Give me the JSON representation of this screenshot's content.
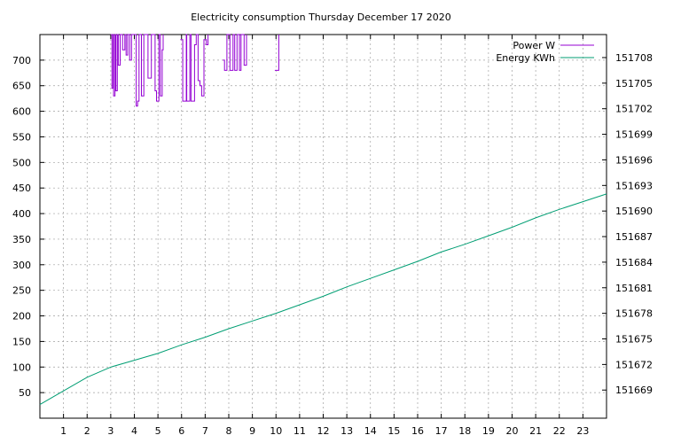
{
  "chart_data": {
    "type": "line",
    "title": "Electricity consumption Thursday December 17 2020",
    "xlabel": "",
    "ylabel": "",
    "grid": true,
    "legend_position": "top-right",
    "x_ticks": [
      1,
      2,
      3,
      4,
      5,
      6,
      7,
      8,
      9,
      10,
      11,
      12,
      13,
      14,
      15,
      16,
      17,
      18,
      19,
      20,
      21,
      22,
      23
    ],
    "xlim": [
      0,
      24
    ],
    "y_left": {
      "ticks": [
        50,
        100,
        150,
        200,
        250,
        300,
        350,
        400,
        450,
        500,
        550,
        600,
        650,
        700
      ],
      "lim": [
        0,
        750
      ]
    },
    "y_right": {
      "ticks": [
        151669,
        151672,
        151675,
        151678,
        151681,
        151684,
        151687,
        151690,
        151693,
        151696,
        151699,
        151702,
        151705,
        151708
      ],
      "lim": [
        151665.7,
        151710.7
      ]
    },
    "series": [
      {
        "name": "Power W",
        "axis": "left",
        "color": "#9400d3",
        "points": [
          [
            3.0,
            750
          ],
          [
            3.05,
            645
          ],
          [
            3.1,
            750
          ],
          [
            3.12,
            630
          ],
          [
            3.18,
            750
          ],
          [
            3.22,
            640
          ],
          [
            3.28,
            750
          ],
          [
            3.32,
            690
          ],
          [
            3.4,
            750
          ],
          [
            3.5,
            720
          ],
          [
            3.6,
            750
          ],
          [
            3.65,
            710
          ],
          [
            3.72,
            750
          ],
          [
            3.8,
            700
          ],
          [
            3.88,
            750
          ],
          [
            4.08,
            610
          ],
          [
            4.14,
            620
          ],
          [
            4.2,
            750
          ],
          [
            4.3,
            630
          ],
          [
            4.4,
            750
          ],
          [
            4.58,
            665
          ],
          [
            4.72,
            750
          ],
          [
            4.88,
            640
          ],
          [
            4.94,
            620
          ],
          [
            5.04,
            750
          ],
          [
            5.1,
            630
          ],
          [
            5.18,
            720
          ],
          [
            5.22,
            750
          ],
          [
            5.95,
            740
          ],
          [
            6.05,
            620
          ],
          [
            6.2,
            750
          ],
          [
            6.22,
            620
          ],
          [
            6.35,
            750
          ],
          [
            6.4,
            620
          ],
          [
            6.55,
            730
          ],
          [
            6.62,
            750
          ],
          [
            6.7,
            660
          ],
          [
            6.78,
            650
          ],
          [
            6.85,
            630
          ],
          [
            6.95,
            740
          ],
          [
            7.05,
            730
          ],
          [
            7.12,
            750
          ],
          [
            7.75,
            700
          ],
          [
            7.82,
            680
          ],
          [
            7.92,
            750
          ],
          [
            8.05,
            680
          ],
          [
            8.18,
            750
          ],
          [
            8.25,
            680
          ],
          [
            8.35,
            750
          ],
          [
            8.45,
            680
          ],
          [
            8.52,
            750
          ],
          [
            8.65,
            690
          ],
          [
            8.75,
            750
          ],
          [
            9.95,
            680
          ],
          [
            10.05,
            680
          ],
          [
            10.12,
            750
          ]
        ]
      },
      {
        "name": "Energy KWh",
        "axis": "right",
        "color": "#009e73",
        "points": [
          [
            0,
            151667.3
          ],
          [
            1,
            151668.9
          ],
          [
            2,
            151670.5
          ],
          [
            3,
            151671.7
          ],
          [
            4,
            151672.5
          ],
          [
            5,
            151673.3
          ],
          [
            6,
            151674.3
          ],
          [
            7,
            151675.2
          ],
          [
            8,
            151676.2
          ],
          [
            9,
            151677.1
          ],
          [
            10,
            151678.0
          ],
          [
            11,
            151679.0
          ],
          [
            12,
            151680.0
          ],
          [
            13,
            151681.1
          ],
          [
            14,
            151682.1
          ],
          [
            15,
            151683.1
          ],
          [
            16,
            151684.1
          ],
          [
            17,
            151685.2
          ],
          [
            18,
            151686.1
          ],
          [
            19,
            151687.1
          ],
          [
            20,
            151688.1
          ],
          [
            21,
            151689.2
          ],
          [
            22,
            151690.2
          ],
          [
            23,
            151691.1
          ],
          [
            24,
            151692.0
          ]
        ]
      }
    ]
  }
}
